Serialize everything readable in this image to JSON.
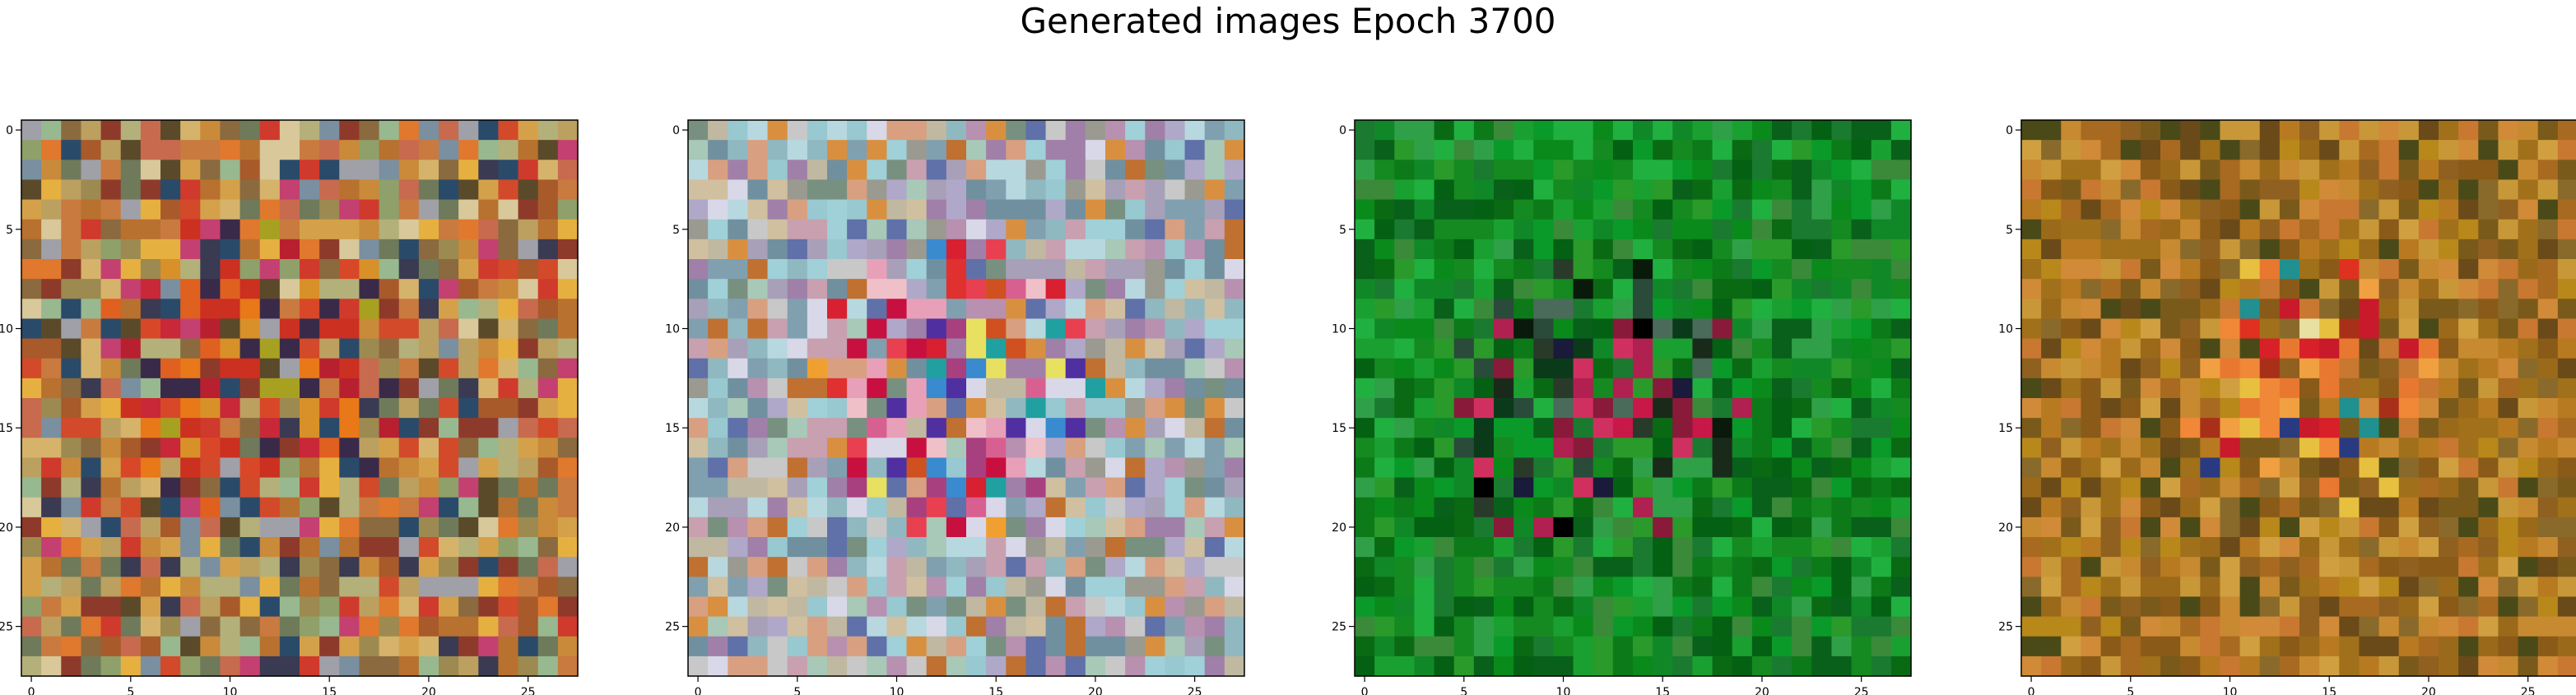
{
  "figure": {
    "title": "Generated images Epoch 3700"
  },
  "panels": [
    {
      "palette": [
        "#c98a3a",
        "#d4a14a",
        "#b8712f",
        "#a85a2a",
        "#c97a3f",
        "#d6b36a",
        "#9c8a50",
        "#8fa06a",
        "#b4b07a",
        "#c86a4e",
        "#d24a2a",
        "#e0782e",
        "#cf3a2c",
        "#8a6a3e",
        "#6e7a5a",
        "#7a8fa0",
        "#a0a0a8",
        "#bca060",
        "#d8c89a",
        "#c44070",
        "#5a4a2a",
        "#e6b040",
        "#8e3a2a",
        "#3a3a52",
        "#2a4a6a",
        "#98b890"
      ],
      "hot": [
        "#d84828",
        "#cc3020",
        "#e06020",
        "#c82838",
        "#b82030",
        "#d89028",
        "#a8a020",
        "#e87818",
        "#3a2a4a"
      ],
      "center": [
        12,
        11
      ],
      "hot_radius": 8
    },
    {
      "palette": [
        "#a8a0b8",
        "#b0a8c8",
        "#c8a0b0",
        "#90b8c0",
        "#a0d0d8",
        "#c0b8a0",
        "#d0c0a0",
        "#9a9a90",
        "#80a0b0",
        "#b890b0",
        "#c8c8c8",
        "#a8c8b8",
        "#d8a080",
        "#d89040",
        "#c07030",
        "#789080",
        "#98c8d0",
        "#b8d8e0",
        "#a080a8",
        "#6070a8",
        "#7090a0",
        "#d8d8e8"
      ],
      "hot": [
        "#e03030",
        "#d82030",
        "#e84050",
        "#c81040",
        "#f0c0c8",
        "#d86090",
        "#e8a0b8",
        "#a84080",
        "#5030a0",
        "#e8e060",
        "#f0a030",
        "#3a8ad0",
        "#20a0a0",
        "#d05020"
      ],
      "center": [
        13,
        13
      ],
      "hot_radius": 8
    },
    {
      "palette": [
        "#0a8a1a",
        "#148a20",
        "#0c7a18",
        "#1aa030",
        "#0a6a14",
        "#2a9a2a",
        "#08601a",
        "#108828",
        "#20b040",
        "#046012",
        "#1a7a30",
        "#3a8a3a",
        "#0a9a2a",
        "#30a048"
      ],
      "hot": [
        "#000000",
        "#0a1a0a",
        "#1a2a1a",
        "#2a3a2a",
        "#0a3a1a",
        "#b02050",
        "#d03060",
        "#c81848",
        "#8a1a3a",
        "#4a6a5a",
        "#2a4a3a",
        "#1a1a3a"
      ],
      "center": [
        14,
        12
      ],
      "hot_radius": 8
    },
    {
      "palette": [
        "#b87a20",
        "#a86a20",
        "#c88a30",
        "#9a6a1a",
        "#8a5a18",
        "#c87830",
        "#d08a38",
        "#a0701a",
        "#7a5a1a",
        "#b8881a",
        "#c89838",
        "#906020",
        "#6a4a18",
        "#4a4a18",
        "#8a6a2a",
        "#d0a040"
      ],
      "hot": [
        "#e03020",
        "#d82028",
        "#f0a040",
        "#e87830",
        "#c81a2a",
        "#e8c040",
        "#f08838",
        "#209090",
        "#2a3a80",
        "#e8e0a0",
        "#a83018"
      ],
      "center": [
        13,
        14
      ],
      "hot_radius": 7
    }
  ],
  "axes": {
    "ticks": [
      "0",
      "5",
      "10",
      "15",
      "20",
      "25"
    ],
    "tick_values": [
      0,
      5,
      10,
      15,
      20,
      25
    ],
    "grid_size": 28
  }
}
